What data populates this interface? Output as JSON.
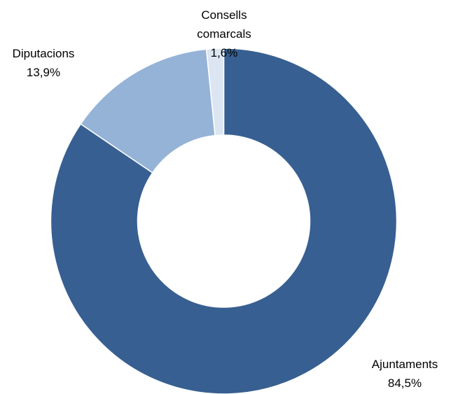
{
  "chart_data": {
    "type": "donut",
    "categories": [
      "Ajuntaments",
      "Diputacions",
      "Consells comarcals"
    ],
    "values": [
      84.5,
      13.9,
      1.6
    ],
    "value_labels": [
      "84,5%",
      "13,9%",
      "1,6%"
    ],
    "colors": [
      "#375f91",
      "#95b3d7",
      "#dce6f2"
    ]
  }
}
